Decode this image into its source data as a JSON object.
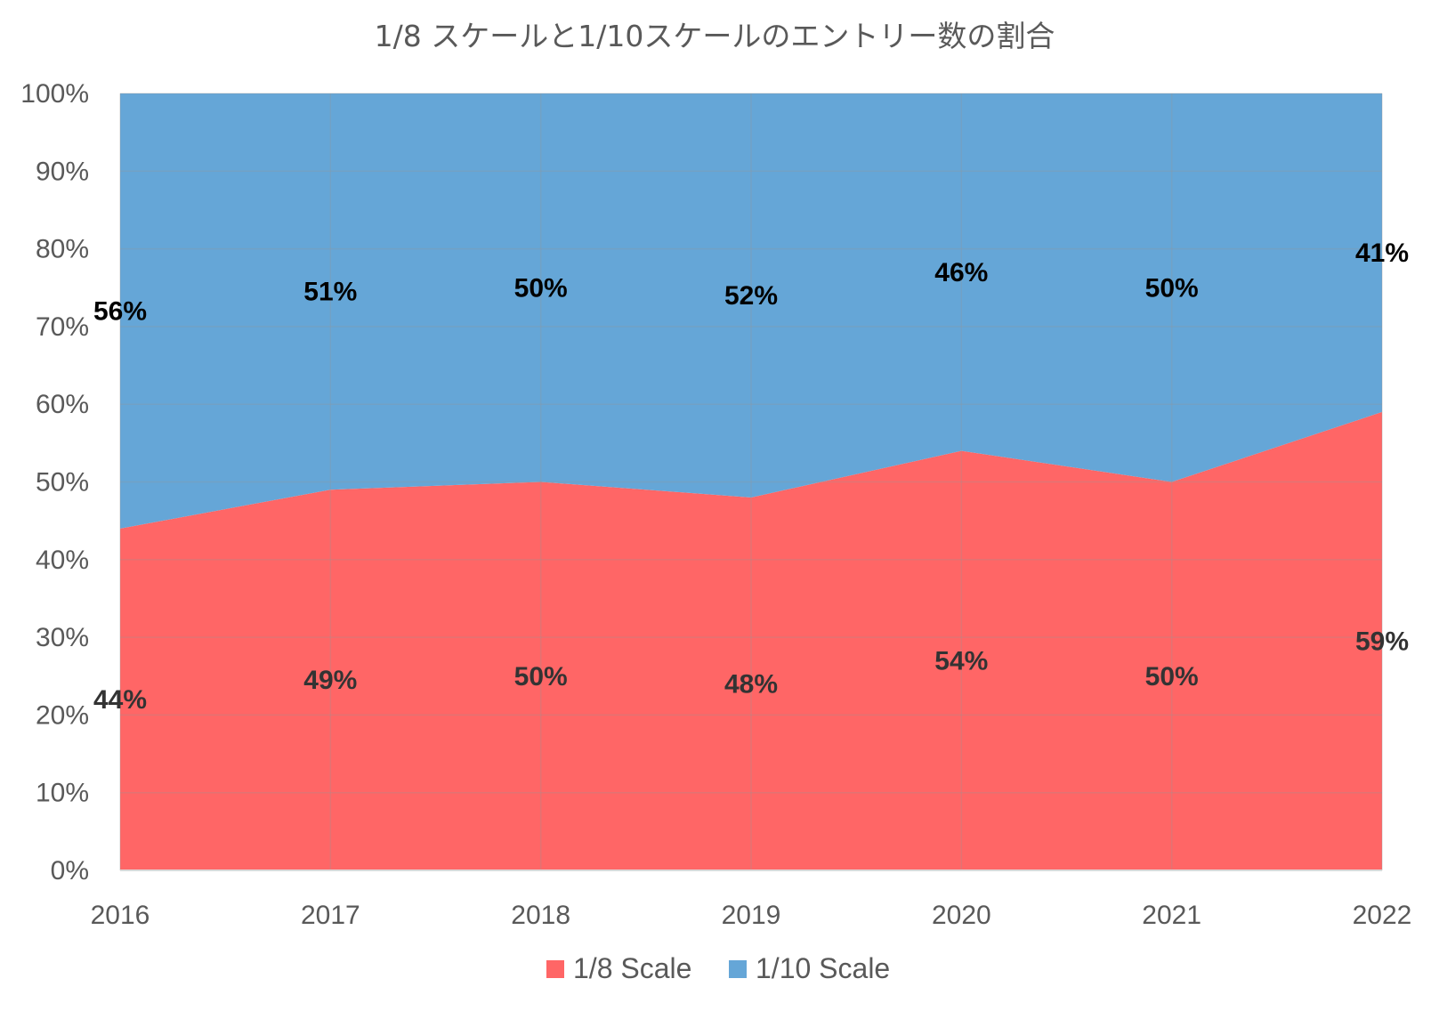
{
  "chart_data": {
    "type": "area",
    "stacked": "percent",
    "title": "1/8 スケールと1/10スケールのエントリー数の割合",
    "categories": [
      "2016",
      "2017",
      "2018",
      "2019",
      "2020",
      "2021",
      "2022"
    ],
    "series": [
      {
        "name": "1/8 Scale",
        "color": "#FF6666",
        "values": [
          44,
          49,
          50,
          48,
          54,
          50,
          59
        ],
        "labels": [
          "44%",
          "49%",
          "50%",
          "48%",
          "54%",
          "50%",
          "59%"
        ],
        "label_color": "#333333"
      },
      {
        "name": "1/10 Scale",
        "color": "#65A6D7",
        "values": [
          56,
          51,
          50,
          52,
          46,
          50,
          41
        ],
        "labels": [
          "56%",
          "51%",
          "50%",
          "52%",
          "46%",
          "50%",
          "41%"
        ],
        "label_color": "#000000"
      }
    ],
    "y_ticks": [
      "0%",
      "10%",
      "20%",
      "30%",
      "40%",
      "50%",
      "60%",
      "70%",
      "80%",
      "90%",
      "100%"
    ],
    "ylim": [
      0,
      100
    ],
    "xlabel": "",
    "ylabel": "",
    "grid": true,
    "legend_position": "bottom"
  }
}
